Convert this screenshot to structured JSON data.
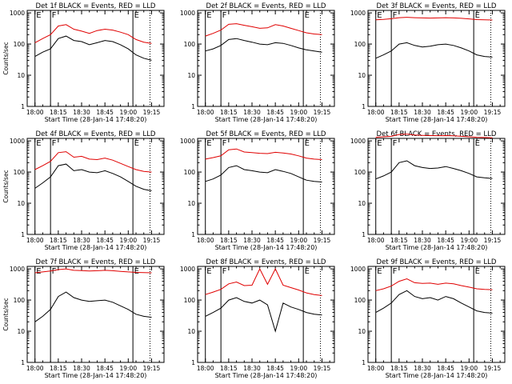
{
  "figure": {
    "background": "#ffffff",
    "axis_color": "#000000",
    "events_color": "#000000",
    "lld_color": "#e00000"
  },
  "chart_data": [
    {
      "type": "line",
      "title": "Det 1f BLACK = Events, RED = LLD",
      "xlabel": "Start Time (28-Jan-14 17:48:20)",
      "ylabel": "Counts/sec",
      "x_tick_labels": [
        "18:00",
        "18:15",
        "18:30",
        "18:45",
        "19:00",
        "19:15"
      ],
      "y_tick_labels": [
        "1",
        "10",
        "100",
        "1000"
      ],
      "y_scale": "log",
      "ylim": [
        1,
        1200
      ],
      "x_minutes": [
        0,
        5,
        10,
        15,
        20,
        25,
        30,
        35,
        40,
        45,
        50,
        55,
        60,
        65,
        70,
        75
      ],
      "series": [
        {
          "name": "Events",
          "color": "#000000",
          "values": [
            40,
            55,
            70,
            150,
            180,
            130,
            120,
            95,
            110,
            130,
            120,
            95,
            70,
            45,
            35,
            30
          ]
        },
        {
          "name": "LLD",
          "color": "#e00000",
          "values": [
            110,
            150,
            200,
            380,
            420,
            300,
            260,
            220,
            270,
            300,
            280,
            240,
            200,
            140,
            115,
            105
          ]
        }
      ],
      "markers": [
        {
          "label": "E",
          "minute": 0,
          "style": "solid"
        },
        {
          "label": "F",
          "minute": 10,
          "style": "solid"
        },
        {
          "label": "E",
          "minute": 63,
          "style": "solid"
        },
        {
          "label": "",
          "minute": 74,
          "style": "dotted"
        }
      ]
    },
    {
      "type": "line",
      "title": "Det 2f BLACK = Events, RED = LLD",
      "xlabel": "Start Time (28-Jan-14 17:48:20)",
      "ylabel": "",
      "x_tick_labels": [
        "18:00",
        "18:15",
        "18:30",
        "18:45",
        "19:00",
        "19:15"
      ],
      "y_tick_labels": [
        "1",
        "10",
        "100",
        "1000"
      ],
      "y_scale": "log",
      "ylim": [
        1,
        1200
      ],
      "x_minutes": [
        0,
        5,
        10,
        15,
        20,
        25,
        30,
        35,
        40,
        45,
        50,
        55,
        60,
        65,
        70,
        75
      ],
      "series": [
        {
          "name": "Events",
          "color": "#000000",
          "values": [
            60,
            70,
            90,
            140,
            150,
            130,
            115,
            100,
            95,
            110,
            105,
            90,
            75,
            65,
            60,
            55
          ]
        },
        {
          "name": "LLD",
          "color": "#e00000",
          "values": [
            180,
            220,
            280,
            430,
            450,
            400,
            360,
            320,
            330,
            420,
            380,
            320,
            270,
            230,
            210,
            200
          ]
        }
      ],
      "markers": [
        {
          "label": "E",
          "minute": 0,
          "style": "solid"
        },
        {
          "label": "F",
          "minute": 10,
          "style": "solid"
        },
        {
          "label": "E",
          "minute": 63,
          "style": "solid"
        },
        {
          "label": "",
          "minute": 74,
          "style": "dotted"
        }
      ]
    },
    {
      "type": "line",
      "title": "Det 3f BLACK = Events, RED = LLD",
      "xlabel": "Start Time (28-Jan-14 17:48:20)",
      "ylabel": "",
      "x_tick_labels": [
        "18:00",
        "18:15",
        "18:30",
        "18:45",
        "19:00",
        "19:15"
      ],
      "y_tick_labels": [
        "1",
        "10",
        "100",
        "1000"
      ],
      "y_scale": "log",
      "ylim": [
        1,
        1200
      ],
      "x_minutes": [
        0,
        5,
        10,
        15,
        20,
        25,
        30,
        35,
        40,
        45,
        50,
        55,
        60,
        65,
        70,
        75
      ],
      "series": [
        {
          "name": "Events",
          "color": "#000000",
          "values": [
            35,
            45,
            60,
            100,
            110,
            90,
            80,
            85,
            95,
            100,
            90,
            75,
            60,
            45,
            40,
            38
          ]
        },
        {
          "name": "LLD",
          "color": "#e00000",
          "values": [
            600,
            620,
            650,
            700,
            720,
            700,
            690,
            680,
            690,
            700,
            690,
            670,
            640,
            610,
            600,
            590
          ]
        }
      ],
      "markers": [
        {
          "label": "E",
          "minute": 0,
          "style": "solid"
        },
        {
          "label": "F",
          "minute": 10,
          "style": "solid"
        },
        {
          "label": "E",
          "minute": 63,
          "style": "solid"
        },
        {
          "label": "",
          "minute": 74,
          "style": "dotted"
        }
      ]
    },
    {
      "type": "line",
      "title": "Det 4f BLACK = Events, RED = LLD",
      "xlabel": "Start Time (28-Jan-14 17:48:20)",
      "ylabel": "Counts/sec",
      "x_tick_labels": [
        "18:00",
        "18:15",
        "18:30",
        "18:45",
        "19:00",
        "19:15"
      ],
      "y_tick_labels": [
        "1",
        "10",
        "100",
        "1000"
      ],
      "y_scale": "log",
      "ylim": [
        1,
        1200
      ],
      "x_minutes": [
        0,
        5,
        10,
        15,
        20,
        25,
        30,
        35,
        40,
        45,
        50,
        55,
        60,
        65,
        70,
        75
      ],
      "series": [
        {
          "name": "Events",
          "color": "#000000",
          "values": [
            30,
            45,
            70,
            160,
            180,
            110,
            120,
            100,
            95,
            110,
            90,
            70,
            50,
            35,
            28,
            25
          ]
        },
        {
          "name": "LLD",
          "color": "#e00000",
          "values": [
            120,
            160,
            220,
            420,
            450,
            300,
            320,
            260,
            250,
            280,
            240,
            190,
            150,
            120,
            105,
            100
          ]
        }
      ],
      "markers": [
        {
          "label": "E",
          "minute": 0,
          "style": "solid"
        },
        {
          "label": "F",
          "minute": 10,
          "style": "solid"
        },
        {
          "label": "E",
          "minute": 63,
          "style": "solid"
        },
        {
          "label": "",
          "minute": 74,
          "style": "dotted"
        }
      ]
    },
    {
      "type": "line",
      "title": "Det 5f BLACK = Events, RED = LLD",
      "xlabel": "Start Time (28-Jan-14 17:48:20)",
      "ylabel": "",
      "x_tick_labels": [
        "18:00",
        "18:15",
        "18:30",
        "18:45",
        "19:00",
        "19:15"
      ],
      "y_tick_labels": [
        "1",
        "10",
        "100",
        "1000"
      ],
      "y_scale": "log",
      "ylim": [
        1,
        1200
      ],
      "x_minutes": [
        0,
        5,
        10,
        15,
        20,
        25,
        30,
        35,
        40,
        45,
        50,
        55,
        60,
        65,
        70,
        75
      ],
      "series": [
        {
          "name": "Events",
          "color": "#000000",
          "values": [
            50,
            60,
            80,
            140,
            160,
            120,
            110,
            100,
            95,
            120,
            105,
            90,
            70,
            55,
            50,
            48
          ]
        },
        {
          "name": "LLD",
          "color": "#e00000",
          "values": [
            260,
            290,
            330,
            520,
            550,
            440,
            420,
            400,
            390,
            430,
            410,
            380,
            330,
            280,
            260,
            250
          ]
        }
      ],
      "markers": [
        {
          "label": "E",
          "minute": 0,
          "style": "solid"
        },
        {
          "label": "F",
          "minute": 10,
          "style": "solid"
        },
        {
          "label": "E",
          "minute": 63,
          "style": "solid"
        },
        {
          "label": "",
          "minute": 74,
          "style": "dotted"
        }
      ]
    },
    {
      "type": "line",
      "title": "Det 6f BLACK = Events, RED = LLD",
      "xlabel": "Start Time (28-Jan-14 17:48:20)",
      "ylabel": "",
      "x_tick_labels": [
        "18:00",
        "18:15",
        "18:30",
        "18:45",
        "19:00",
        "19:15"
      ],
      "y_tick_labels": [
        "1",
        "10",
        "100",
        "1000"
      ],
      "y_scale": "log",
      "ylim": [
        1,
        1200
      ],
      "x_minutes": [
        0,
        5,
        10,
        15,
        20,
        25,
        30,
        35,
        40,
        45,
        50,
        55,
        60,
        65,
        70,
        75
      ],
      "series": [
        {
          "name": "Events",
          "color": "#000000",
          "values": [
            60,
            75,
            100,
            200,
            230,
            160,
            140,
            130,
            135,
            150,
            130,
            110,
            90,
            70,
            65,
            62
          ]
        },
        {
          "name": "LLD",
          "color": "#e00000",
          "values": [
            1300,
            1350,
            1400,
            1600,
            1650,
            1550,
            1500,
            1480,
            1470,
            1480,
            1450,
            1400,
            1350,
            1300,
            1280,
            1260
          ]
        }
      ],
      "markers": [
        {
          "label": "E",
          "minute": 0,
          "style": "solid"
        },
        {
          "label": "F",
          "minute": 10,
          "style": "solid"
        },
        {
          "label": "E",
          "minute": 63,
          "style": "solid"
        },
        {
          "label": "",
          "minute": 74,
          "style": "dotted"
        }
      ]
    },
    {
      "type": "line",
      "title": "Det 7f BLACK = Events, RED = LLD",
      "xlabel": "Start Time (28-Jan-14 17:48:20)",
      "ylabel": "Counts/sec",
      "x_tick_labels": [
        "18:00",
        "18:15",
        "18:30",
        "18:45",
        "19:00",
        "19:15"
      ],
      "y_tick_labels": [
        "1",
        "10",
        "100",
        "1000"
      ],
      "y_scale": "log",
      "ylim": [
        1,
        1200
      ],
      "x_minutes": [
        0,
        5,
        10,
        15,
        20,
        25,
        30,
        35,
        40,
        45,
        50,
        55,
        60,
        65,
        70,
        75
      ],
      "series": [
        {
          "name": "Events",
          "color": "#000000",
          "values": [
            20,
            30,
            50,
            130,
            180,
            120,
            100,
            90,
            95,
            100,
            85,
            65,
            50,
            35,
            30,
            28
          ]
        },
        {
          "name": "LLD",
          "color": "#e00000",
          "values": [
            750,
            800,
            850,
            950,
            1000,
            900,
            880,
            850,
            870,
            900,
            870,
            830,
            800,
            770,
            760,
            750
          ]
        }
      ],
      "markers": [
        {
          "label": "E",
          "minute": 0,
          "style": "solid"
        },
        {
          "label": "F",
          "minute": 10,
          "style": "solid"
        },
        {
          "label": "E",
          "minute": 63,
          "style": "solid"
        },
        {
          "label": "",
          "minute": 74,
          "style": "dotted"
        }
      ]
    },
    {
      "type": "line",
      "title": "Det 8f BLACK = Events, RED = LLD",
      "xlabel": "Start Time (28-Jan-14 17:48:20)",
      "ylabel": "",
      "x_tick_labels": [
        "18:00",
        "18:15",
        "18:30",
        "18:45",
        "19:00",
        "19:15"
      ],
      "y_tick_labels": [
        "1",
        "10",
        "100",
        "1000"
      ],
      "y_scale": "log",
      "ylim": [
        1,
        1200
      ],
      "x_minutes": [
        0,
        5,
        10,
        15,
        20,
        25,
        30,
        35,
        40,
        45,
        50,
        55,
        60,
        65,
        70,
        75
      ],
      "series": [
        {
          "name": "Events",
          "color": "#000000",
          "values": [
            30,
            40,
            55,
            100,
            120,
            90,
            80,
            100,
            70,
            10,
            80,
            60,
            50,
            40,
            35,
            33
          ]
        },
        {
          "name": "LLD",
          "color": "#e00000",
          "values": [
            150,
            180,
            220,
            330,
            380,
            290,
            300,
            1000,
            320,
            1000,
            300,
            250,
            210,
            170,
            150,
            140
          ]
        }
      ],
      "markers": [
        {
          "label": "E",
          "minute": 0,
          "style": "solid"
        },
        {
          "label": "F",
          "minute": 10,
          "style": "solid"
        },
        {
          "label": "E",
          "minute": 63,
          "style": "solid"
        },
        {
          "label": "",
          "minute": 74,
          "style": "dotted"
        }
      ]
    },
    {
      "type": "line",
      "title": "Det 9f BLACK = Events, RED = LLD",
      "xlabel": "Start Time (28-Jan-14 17:48:20)",
      "ylabel": "",
      "x_tick_labels": [
        "18:00",
        "18:15",
        "18:30",
        "18:45",
        "19:00",
        "19:15"
      ],
      "y_tick_labels": [
        "1",
        "10",
        "100",
        "1000"
      ],
      "y_scale": "log",
      "ylim": [
        1,
        1200
      ],
      "x_minutes": [
        0,
        5,
        10,
        15,
        20,
        25,
        30,
        35,
        40,
        45,
        50,
        55,
        60,
        65,
        70,
        75
      ],
      "series": [
        {
          "name": "Events",
          "color": "#000000",
          "values": [
            40,
            55,
            80,
            150,
            200,
            130,
            110,
            120,
            100,
            130,
            110,
            80,
            60,
            45,
            40,
            38
          ]
        },
        {
          "name": "LLD",
          "color": "#e00000",
          "values": [
            200,
            230,
            280,
            400,
            480,
            360,
            340,
            350,
            320,
            350,
            330,
            290,
            260,
            230,
            220,
            215
          ]
        }
      ],
      "markers": [
        {
          "label": "E",
          "minute": 0,
          "style": "solid"
        },
        {
          "label": "F",
          "minute": 10,
          "style": "solid"
        },
        {
          "label": "E",
          "minute": 63,
          "style": "solid"
        },
        {
          "label": "",
          "minute": 74,
          "style": "dotted"
        }
      ]
    }
  ]
}
